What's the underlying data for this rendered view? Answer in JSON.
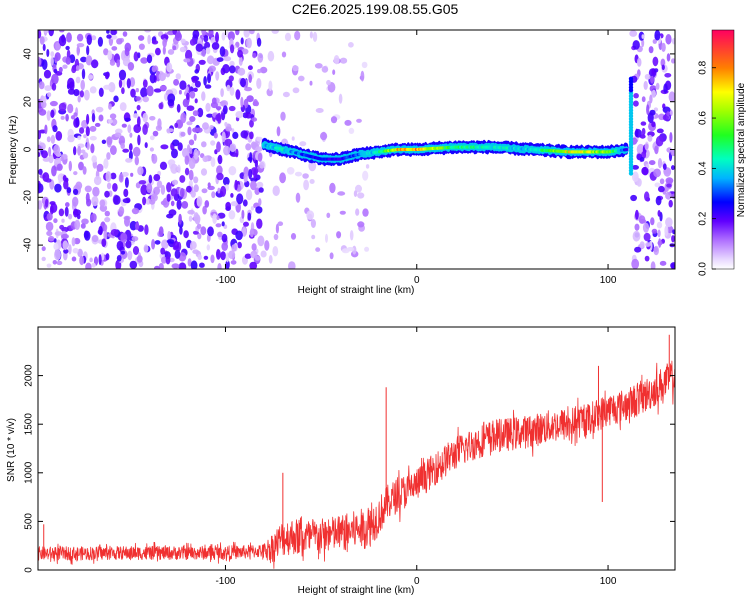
{
  "title": "C2E6.2025.199.08.55.G05",
  "chart_data": [
    {
      "type": "heatmap",
      "xlabel": "Height of straight line (km)",
      "ylabel": "Frequency (Hz)",
      "xlim": [
        -198,
        135
      ],
      "ylim": [
        -50,
        50
      ],
      "xticks": [
        -100,
        0,
        100
      ],
      "xtick_labels": [
        "-100",
        "0",
        "100"
      ],
      "yticks": [
        -40,
        -20,
        0,
        20,
        40
      ],
      "ytick_labels": [
        "-40",
        "-20",
        "0",
        "20",
        "40"
      ],
      "grid": false,
      "colorbar": {
        "label": "Normalized spectral amplitude",
        "range": [
          0,
          0.95
        ],
        "ticks": [
          0.0,
          0.2,
          0.4,
          0.6,
          0.8
        ],
        "tick_labels": [
          "0.0",
          "0.2",
          "0.4",
          "0.6",
          "0.8"
        ],
        "colormap": [
          "#ffffff",
          "#e0ccff",
          "#8000ff",
          "#0000ff",
          "#00c8ff",
          "#00ff80",
          "#80ff00",
          "#ffff00",
          "#ff8000",
          "#ff0050"
        ]
      },
      "noise_regions": [
        {
          "x_from": -198,
          "x_to": -80,
          "density": "dense"
        },
        {
          "x_from": -80,
          "x_to": -25,
          "density": "sparse"
        },
        {
          "x_from": 113,
          "x_to": 135,
          "density": "dense"
        }
      ],
      "ridge": {
        "x": [
          -80,
          -70,
          -60,
          -50,
          -40,
          -30,
          -20,
          -10,
          0,
          20,
          40,
          60,
          80,
          100,
          110
        ],
        "freq": [
          2,
          0,
          -2,
          -4,
          -4,
          -2,
          -1,
          0,
          0,
          1,
          1,
          0,
          -1,
          -1,
          0
        ],
        "amplitude": [
          0.45,
          0.5,
          0.35,
          0.3,
          0.3,
          0.4,
          0.5,
          0.85,
          0.9,
          0.55,
          0.5,
          0.45,
          0.8,
          0.7,
          0.3
        ]
      }
    },
    {
      "type": "line",
      "xlabel": "Height of straight line (km)",
      "ylabel": "SNR (10 * v/v)",
      "xlim": [
        -198,
        135
      ],
      "ylim": [
        0,
        2500
      ],
      "xticks": [
        -100,
        0,
        100
      ],
      "xtick_labels": [
        "-100",
        "0",
        "100"
      ],
      "yticks": [
        0,
        500,
        1000,
        1500,
        2000
      ],
      "ytick_labels": [
        "0",
        "500",
        "1000",
        "1500",
        "2000"
      ],
      "grid": false,
      "series_color": "#f03030",
      "x": [
        -198,
        -180,
        -160,
        -140,
        -120,
        -100,
        -90,
        -80,
        -75,
        -70,
        -65,
        -60,
        -50,
        -40,
        -30,
        -25,
        -20,
        -15,
        -10,
        -5,
        0,
        10,
        20,
        30,
        40,
        50,
        60,
        70,
        80,
        90,
        100,
        110,
        120,
        135
      ],
      "y": [
        170,
        170,
        175,
        175,
        175,
        180,
        185,
        200,
        240,
        330,
        350,
        330,
        350,
        380,
        420,
        440,
        550,
        700,
        770,
        820,
        880,
        1050,
        1200,
        1300,
        1380,
        1400,
        1430,
        1480,
        1500,
        1550,
        1650,
        1700,
        1800,
        2000
      ],
      "spread": [
        70,
        70,
        70,
        70,
        70,
        70,
        70,
        70,
        160,
        190,
        190,
        190,
        180,
        190,
        200,
        220,
        200,
        180,
        180,
        180,
        170,
        170,
        170,
        170,
        170,
        170,
        170,
        170,
        170,
        170,
        170,
        170,
        180,
        180
      ],
      "spikes": [
        {
          "x": -195,
          "y": 470
        },
        {
          "x": -70,
          "y": 1000
        },
        {
          "x": -16,
          "y": 1880
        },
        {
          "x": 97,
          "y": 700
        },
        {
          "x": 95,
          "y": 2100
        },
        {
          "x": 132,
          "y": 2420
        }
      ]
    }
  ]
}
